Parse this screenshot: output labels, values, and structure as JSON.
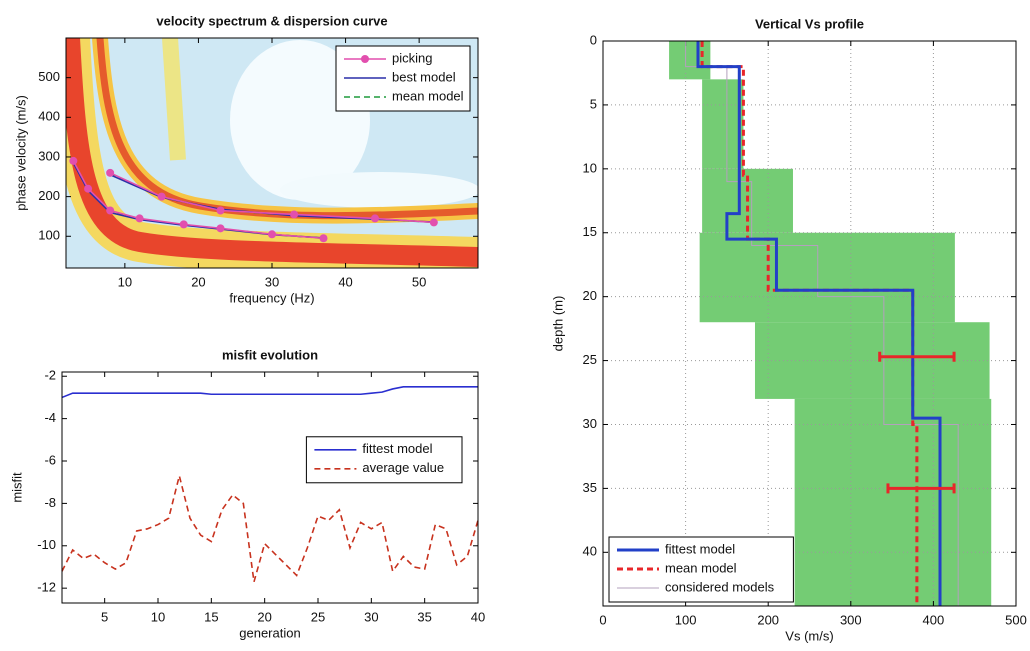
{
  "chart_data": [
    {
      "type": "line",
      "title": "velocity spectrum & dispersion curve",
      "xlabel": "frequency (Hz)",
      "ylabel": "phase velocity (m/s)",
      "xlim": [
        2,
        58
      ],
      "xticks": [
        10,
        20,
        30,
        40,
        50
      ],
      "ylim": [
        20,
        600
      ],
      "yticks": [
        100,
        200,
        300,
        400,
        500
      ],
      "grid": false,
      "legend": "upper right",
      "series": [
        {
          "name": "picking",
          "color": "#e24fae",
          "marker": "circle",
          "style": "solid",
          "x": [
            8,
            15,
            23,
            33,
            44,
            52,
            52,
            3,
            5,
            8,
            12,
            18,
            23,
            30,
            37
          ],
          "values": [
            260,
            200,
            165,
            155,
            145,
            135,
            null,
            290,
            220,
            165,
            145,
            130,
            120,
            105,
            95
          ]
        },
        {
          "name": "best model",
          "color": "#2a2fa8",
          "style": "solid",
          "x": [
            8,
            15,
            23,
            33,
            44,
            52,
            52,
            3,
            5,
            8,
            12,
            18,
            23,
            30,
            37
          ],
          "values": [
            255,
            198,
            168,
            152,
            143,
            136,
            null,
            285,
            215,
            160,
            142,
            128,
            118,
            104,
            96
          ]
        },
        {
          "name": "mean model",
          "color": "#1f9a3c",
          "style": "dashed",
          "x": [
            8,
            15,
            23,
            33,
            44,
            52,
            52,
            3,
            5,
            8,
            12,
            18,
            23,
            30,
            37
          ],
          "values": [
            258,
            199,
            166,
            153,
            144,
            135,
            null,
            288,
            218,
            162,
            144,
            129,
            119,
            105,
            95
          ]
        }
      ]
    },
    {
      "type": "line",
      "title": "misfit evolution",
      "xlabel": "generation",
      "ylabel": "misfit",
      "xlim": [
        1,
        40
      ],
      "xticks": [
        5,
        10,
        15,
        20,
        25,
        30,
        35,
        40
      ],
      "ylim": [
        -12.7,
        -1.8
      ],
      "yticks": [
        -12,
        -10,
        -8,
        -6,
        -4,
        -2
      ],
      "grid": false,
      "legend": "center right",
      "x": [
        1,
        2,
        3,
        4,
        5,
        6,
        7,
        8,
        9,
        10,
        11,
        12,
        13,
        14,
        15,
        16,
        17,
        18,
        19,
        20,
        21,
        22,
        23,
        24,
        25,
        26,
        27,
        28,
        29,
        30,
        31,
        32,
        33,
        34,
        35,
        36,
        37,
        38,
        39,
        40
      ],
      "series": [
        {
          "name": "fittest model",
          "color": "#2a2fd0",
          "style": "solid",
          "values": [
            -3.0,
            -2.8,
            -2.8,
            -2.8,
            -2.8,
            -2.8,
            -2.8,
            -2.8,
            -2.8,
            -2.8,
            -2.8,
            -2.8,
            -2.8,
            -2.8,
            -2.85,
            -2.85,
            -2.85,
            -2.85,
            -2.85,
            -2.85,
            -2.85,
            -2.85,
            -2.85,
            -2.85,
            -2.85,
            -2.85,
            -2.85,
            -2.85,
            -2.85,
            -2.8,
            -2.75,
            -2.6,
            -2.5,
            -2.5,
            -2.5,
            -2.5,
            -2.5,
            -2.5,
            -2.5,
            -2.5
          ]
        },
        {
          "name": "average value",
          "color": "#c8321e",
          "style": "dashed",
          "values": [
            -11.2,
            -10.2,
            -10.6,
            -10.4,
            -10.8,
            -11.1,
            -10.8,
            -9.3,
            -9.2,
            -9.0,
            -8.7,
            -6.7,
            -8.7,
            -9.5,
            -9.8,
            -8.3,
            -7.6,
            -8.0,
            -11.7,
            -9.9,
            -10.4,
            -10.9,
            -11.4,
            -10.1,
            -8.6,
            -8.8,
            -8.3,
            -10.1,
            -8.9,
            -9.2,
            -8.9,
            -11.2,
            -10.5,
            -11.0,
            -11.1,
            -9.0,
            -9.2,
            -10.9,
            -10.5,
            -8.8
          ]
        }
      ]
    },
    {
      "type": "profile",
      "title": "Vertical Vs profile",
      "xlabel": "Vs (m/s)",
      "ylabel": "depth (m)",
      "xlim": [
        0,
        500
      ],
      "xticks": [
        0,
        100,
        200,
        300,
        400,
        500
      ],
      "ylim": [
        0,
        44.2
      ],
      "yticks": [
        0,
        5,
        10,
        15,
        20,
        25,
        30,
        35,
        40
      ],
      "y_inverted": true,
      "grid": true,
      "legend": "lower left",
      "envelope": {
        "color": "#5cc35c",
        "depth": [
          0,
          3,
          10,
          15,
          22,
          28,
          44.2
        ],
        "low": [
          80,
          120,
          120,
          117,
          184,
          232
        ],
        "high": [
          130,
          170,
          230,
          426,
          468,
          470
        ]
      },
      "series": [
        {
          "name": "fittest model",
          "color": "#2240c8",
          "style": "solid",
          "x": [
            115,
            115,
            165,
            165,
            150,
            150,
            210,
            210,
            375,
            375,
            408,
            408
          ],
          "values": [
            0,
            2,
            2,
            13.5,
            13.5,
            15.5,
            15.5,
            19.5,
            19.5,
            29.5,
            29.5,
            44.2
          ]
        },
        {
          "name": "mean model",
          "color": "#e8262a",
          "style": "dashed",
          "x": [
            120,
            120,
            170,
            170,
            175,
            175,
            200,
            200,
            375,
            375,
            380,
            380
          ],
          "values": [
            0,
            2,
            2,
            10.5,
            10.5,
            15.5,
            15.5,
            19.5,
            19.5,
            30,
            30,
            44.2
          ]
        },
        {
          "name": "considered models",
          "color": "#b3a0bd",
          "style": "thin",
          "x": [
            100,
            100,
            150,
            150,
            180,
            180,
            260,
            260,
            340,
            340,
            430,
            430
          ],
          "values": [
            0,
            2,
            2,
            11,
            11,
            16,
            16,
            20,
            20,
            30,
            30,
            44.2
          ]
        }
      ],
      "error_bars": [
        {
          "depth": 24.7,
          "value": 380,
          "error": 45
        },
        {
          "depth": 35,
          "value": 385,
          "error": 40
        }
      ]
    }
  ]
}
